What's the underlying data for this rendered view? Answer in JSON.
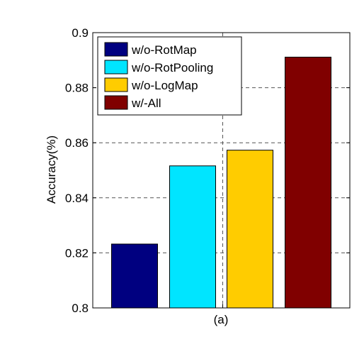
{
  "chart_data": {
    "type": "bar",
    "categories": [
      "w/o-RotMap",
      "w/o-RotPooling",
      "w/o-LogMap",
      "w/-All"
    ],
    "values": [
      0.8232,
      0.8516,
      0.8573,
      0.8911
    ],
    "colors": [
      "#000080",
      "#00e5ff",
      "#ffcc00",
      "#800000"
    ],
    "xlabel": "(a)",
    "ylabel": "Accuracy(%)",
    "ylim": [
      0.8,
      0.9
    ],
    "yticks": [
      0.8,
      0.82,
      0.84,
      0.86,
      0.88,
      0.9
    ],
    "ytick_labels": [
      "0.8",
      "0.82",
      "0.84",
      "0.86",
      "0.88",
      "0.9"
    ],
    "grid": true,
    "legend": {
      "placement": "top-left",
      "entries": [
        "w/o-RotMap",
        "w/o-RotPooling",
        "w/o-LogMap",
        "w/-All"
      ]
    }
  }
}
